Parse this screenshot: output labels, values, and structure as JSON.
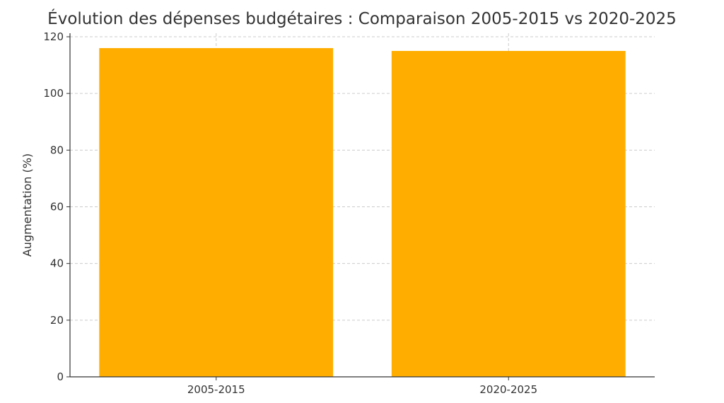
{
  "chart_data": {
    "type": "bar",
    "title": "Évolution des dépenses budgétaires : Comparaison 2005-2015 vs 2020-2025",
    "xlabel": "",
    "ylabel": "Augmentation (%)",
    "categories": [
      "2005-2015",
      "2020-2025"
    ],
    "values": [
      116,
      115
    ],
    "ylim": [
      0,
      120
    ],
    "yticks": [
      "0",
      "20",
      "40",
      "60",
      "80",
      "100",
      "120"
    ],
    "bar_color": "#FFAE00",
    "grid": true
  }
}
